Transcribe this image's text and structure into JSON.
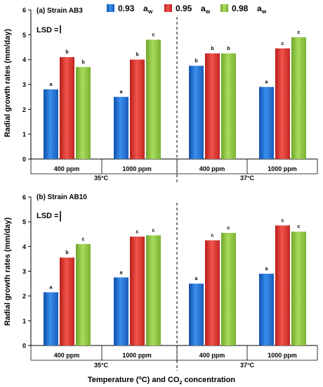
{
  "legend": {
    "items": [
      {
        "value": "0.93",
        "unit": "a",
        "sub": "w",
        "color": "#1f6fd1"
      },
      {
        "value": "0.95",
        "unit": "a",
        "sub": "w",
        "color": "#e0322c"
      },
      {
        "value": "0.98",
        "unit": "a",
        "sub": "w",
        "color": "#8cc63f"
      }
    ]
  },
  "shared": {
    "ylabel": "Radial growth rates (mm/day)",
    "xlabel_prefix": "Temperature (",
    "xlabel_sup": "o",
    "xlabel_mid": "C) and CO",
    "xlabel_sub": "2",
    "xlabel_suffix": " concentration",
    "lsd_label": "LSD ="
  },
  "chart_data": [
    {
      "type": "bar",
      "title": "(a) Strain AB3",
      "ylim": [
        0,
        6
      ],
      "yticks": [
        "0",
        "1",
        "2",
        "3",
        "4",
        "5",
        "6"
      ],
      "groups": [
        {
          "temp": "35°C",
          "categories": [
            "400 ppm",
            "1000 ppm"
          ]
        },
        {
          "temp": "37°C",
          "categories": [
            "400 ppm",
            "1000 ppm"
          ]
        }
      ],
      "series": [
        {
          "name": "0.93 aw",
          "values": [
            2.8,
            2.5,
            3.75,
            2.9
          ],
          "letters": [
            "a",
            "a",
            "b",
            "a"
          ]
        },
        {
          "name": "0.95 aw",
          "values": [
            4.1,
            4.0,
            4.25,
            4.45
          ],
          "letters": [
            "b",
            "b",
            "b",
            "c"
          ]
        },
        {
          "name": "0.98 aw",
          "values": [
            3.7,
            4.8,
            4.25,
            4.9
          ],
          "letters": [
            "b",
            "c",
            "b",
            "c"
          ]
        }
      ],
      "lsd": 0.32
    },
    {
      "type": "bar",
      "title": "(b) Strain AB10",
      "ylim": [
        0,
        6
      ],
      "yticks": [
        "0",
        "1",
        "2",
        "3",
        "4",
        "5",
        "6"
      ],
      "groups": [
        {
          "temp": "35°C",
          "categories": [
            "400 ppm",
            "1000 ppm"
          ]
        },
        {
          "temp": "37°C",
          "categories": [
            "400 ppm",
            "1000 ppm"
          ]
        }
      ],
      "series": [
        {
          "name": "0.93 aw",
          "values": [
            2.15,
            2.75,
            2.5,
            2.9
          ],
          "letters": [
            "a",
            "a",
            "a",
            "a"
          ]
        },
        {
          "name": "0.95 aw",
          "values": [
            3.55,
            4.4,
            4.25,
            4.85
          ],
          "letters": [
            "b",
            "c",
            "c",
            "c"
          ]
        },
        {
          "name": "0.98 aw",
          "values": [
            4.1,
            4.45,
            4.55,
            4.6
          ],
          "letters": [
            "c",
            "c",
            "c",
            "c"
          ]
        }
      ],
      "lsd": 0.42
    }
  ]
}
